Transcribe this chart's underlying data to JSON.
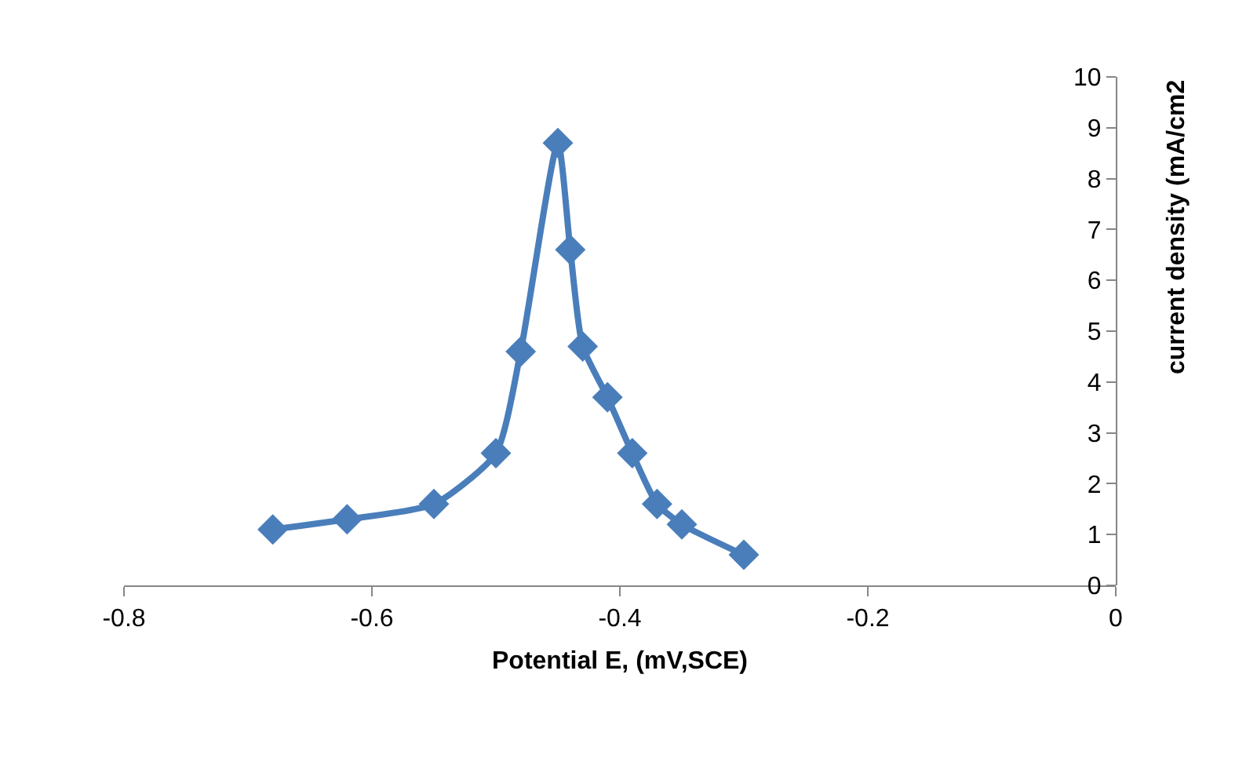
{
  "chart_data": {
    "type": "line",
    "xlabel": "Potential E, (mV,SCE)",
    "ylabel": "current density (mA/cm2",
    "x": [
      -0.68,
      -0.62,
      -0.55,
      -0.5,
      -0.48,
      -0.45,
      -0.44,
      -0.43,
      -0.41,
      -0.39,
      -0.37,
      -0.35,
      -0.3
    ],
    "series": [
      {
        "color": "#4a7ebb",
        "values": [
          1.1,
          1.3,
          1.6,
          2.6,
          4.6,
          8.7,
          6.6,
          4.7,
          3.7,
          2.6,
          1.6,
          1.2,
          0.6
        ]
      }
    ],
    "xlim": [
      -0.8,
      0
    ],
    "xticks": [
      -0.8,
      -0.6,
      -0.4,
      -0.2,
      0
    ],
    "ylim": [
      0,
      10
    ],
    "yticks": [
      0,
      1,
      2,
      3,
      4,
      5,
      6,
      7,
      8,
      9,
      10
    ],
    "marker": "diamond",
    "line_style": "solid"
  }
}
